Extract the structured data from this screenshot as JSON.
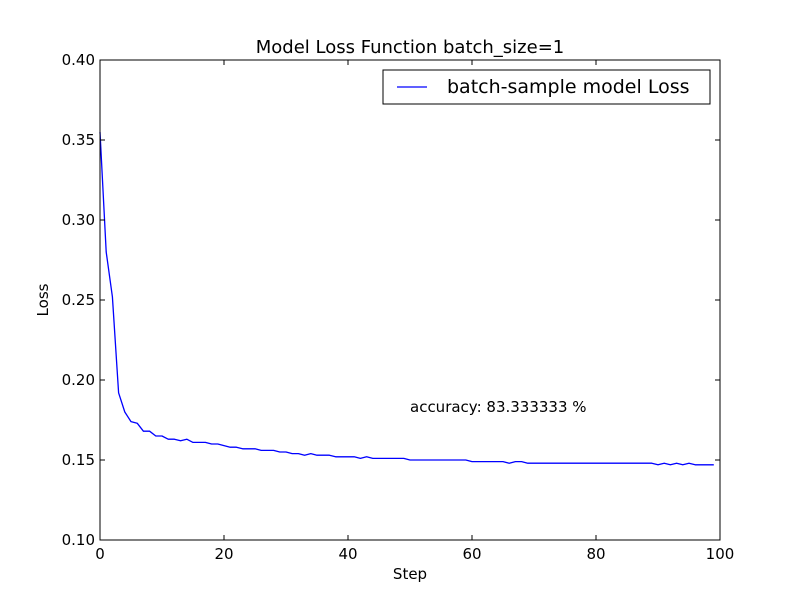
{
  "chart_data": {
    "type": "line",
    "title": "Model Loss Function batch_size=1",
    "xlabel": "Step",
    "ylabel": "Loss",
    "xlim": [
      0,
      100
    ],
    "ylim": [
      0.1,
      0.4
    ],
    "xticks": [
      "0",
      "20",
      "40",
      "60",
      "80",
      "100"
    ],
    "yticks": [
      "0.10",
      "0.15",
      "0.20",
      "0.25",
      "0.30",
      "0.35",
      "0.40"
    ],
    "grid": false,
    "legend_position": "upper right",
    "annotation": "accuracy: 83.333333 %",
    "series": [
      {
        "name": "batch-sample model Loss",
        "color": "#0000ff",
        "x": [
          0,
          1,
          2,
          3,
          4,
          5,
          6,
          7,
          8,
          9,
          10,
          11,
          12,
          13,
          14,
          15,
          16,
          17,
          18,
          19,
          20,
          21,
          22,
          23,
          24,
          25,
          26,
          27,
          28,
          29,
          30,
          31,
          32,
          33,
          34,
          35,
          36,
          37,
          38,
          39,
          40,
          41,
          42,
          43,
          44,
          45,
          46,
          47,
          48,
          49,
          50,
          51,
          52,
          53,
          54,
          55,
          56,
          57,
          58,
          59,
          60,
          61,
          62,
          63,
          64,
          65,
          66,
          67,
          68,
          69,
          70,
          71,
          72,
          73,
          74,
          75,
          76,
          77,
          78,
          79,
          80,
          81,
          82,
          83,
          84,
          85,
          86,
          87,
          88,
          89,
          90,
          91,
          92,
          93,
          94,
          95,
          96,
          97,
          98,
          99
        ],
        "values": [
          0.355,
          0.28,
          0.252,
          0.192,
          0.18,
          0.174,
          0.173,
          0.168,
          0.168,
          0.165,
          0.165,
          0.163,
          0.163,
          0.162,
          0.163,
          0.161,
          0.161,
          0.161,
          0.16,
          0.16,
          0.159,
          0.158,
          0.158,
          0.157,
          0.157,
          0.157,
          0.156,
          0.156,
          0.156,
          0.155,
          0.155,
          0.154,
          0.154,
          0.153,
          0.154,
          0.153,
          0.153,
          0.153,
          0.152,
          0.152,
          0.152,
          0.152,
          0.151,
          0.152,
          0.151,
          0.151,
          0.151,
          0.151,
          0.151,
          0.151,
          0.15,
          0.15,
          0.15,
          0.15,
          0.15,
          0.15,
          0.15,
          0.15,
          0.15,
          0.15,
          0.149,
          0.149,
          0.149,
          0.149,
          0.149,
          0.149,
          0.148,
          0.149,
          0.149,
          0.148,
          0.148,
          0.148,
          0.148,
          0.148,
          0.148,
          0.148,
          0.148,
          0.148,
          0.148,
          0.148,
          0.148,
          0.148,
          0.148,
          0.148,
          0.148,
          0.148,
          0.148,
          0.148,
          0.148,
          0.148,
          0.147,
          0.148,
          0.147,
          0.148,
          0.147,
          0.148,
          0.147,
          0.147,
          0.147,
          0.147
        ]
      }
    ]
  }
}
